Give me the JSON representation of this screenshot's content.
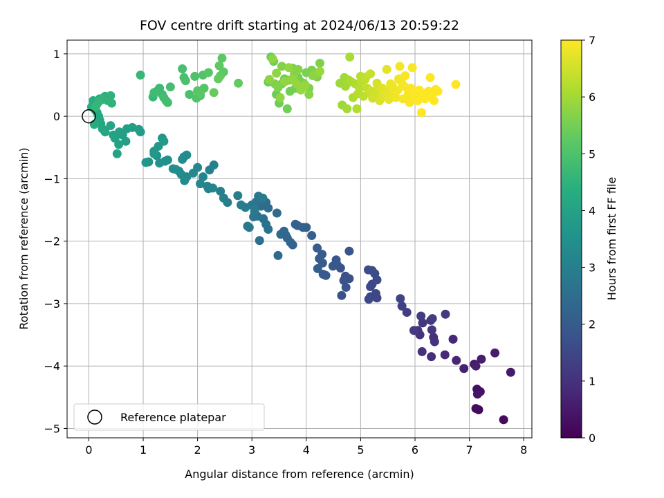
{
  "chart_data": {
    "type": "scatter",
    "title": "FOV centre drift starting at 2024/06/13 20:59:22",
    "xlabel": "Angular distance from reference (arcmin)",
    "ylabel": "Rotation from reference (arcmin)",
    "xlim": [
      -0.4,
      8.15
    ],
    "ylim": [
      -5.15,
      1.22
    ],
    "xticks": [
      0,
      1,
      2,
      3,
      4,
      5,
      6,
      7,
      8
    ],
    "yticks": [
      1,
      0,
      -1,
      -2,
      -3,
      -4,
      -5
    ],
    "grid": true,
    "colormap": "viridis",
    "colorbar": {
      "label": "Hours from first FF file",
      "min": 0,
      "max": 7,
      "ticks": [
        0,
        1,
        2,
        3,
        4,
        5,
        6,
        7
      ]
    },
    "legend": {
      "placement": "lower-left",
      "entries": [
        "Reference platepar"
      ]
    },
    "reference_point": {
      "x": 0.0,
      "y": 0.0,
      "label": "Reference platepar"
    },
    "series": [
      {
        "x": [
          7.17,
          7.63,
          7.12,
          7.14,
          7.2,
          7.15,
          7.09,
          7.76,
          7.47,
          7.22,
          7.12,
          6.9,
          6.76,
          6.7,
          6.55,
          6.3,
          6.34,
          6.13,
          6.09,
          6.05,
          6.36,
          6.29,
          6.31,
          6.14,
          6.56,
          6.32,
          5.98,
          6.11,
          5.85,
          5.76,
          5.73
        ],
        "y": [
          -4.7,
          -4.86,
          -4.68,
          -4.37,
          -4.41,
          -4.45,
          -3.97,
          -4.1,
          -3.79,
          -3.89,
          -4.0,
          -4.04,
          -3.91,
          -3.57,
          -3.82,
          -3.85,
          -3.54,
          -3.77,
          -3.5,
          -3.43,
          -3.61,
          -3.27,
          -3.42,
          -3.31,
          -3.17,
          -3.24,
          -3.43,
          -3.2,
          -3.14,
          -3.04,
          -2.92
        ],
        "hours": [
          0.1,
          0.2,
          0.25,
          0.3,
          0.35,
          0.4,
          0.45,
          0.5,
          0.55,
          0.6,
          0.65,
          0.7,
          0.75,
          0.8,
          0.85,
          0.9,
          0.95,
          1.0,
          1.0,
          1.05,
          1.05,
          1.1,
          1.15,
          1.15,
          1.2,
          1.25,
          1.2,
          1.25,
          1.3,
          1.35,
          1.4
        ]
      },
      {
        "x": [
          5.3,
          5.18,
          5.28,
          5.21,
          5.18,
          5.15,
          5.3,
          5.26,
          5.21,
          5.14,
          4.79,
          4.72,
          4.69,
          4.65,
          4.73,
          4.63,
          4.57,
          4.79,
          4.55,
          4.49,
          4.31,
          4.36,
          4.3,
          4.29,
          4.2,
          4.24,
          4.21,
          4.1,
          4.0,
          3.94,
          3.84,
          3.8,
          3.75,
          3.71,
          3.65,
          3.62,
          3.59,
          3.53,
          3.48,
          3.46,
          3.3,
          3.26,
          3.22,
          3.17,
          3.14,
          3.21,
          3.3,
          3.26,
          3.1,
          3.05,
          3.03,
          3.08,
          3.0,
          2.95,
          2.92,
          3.12,
          3.2,
          3.05,
          2.88,
          2.8,
          2.74,
          2.55,
          2.48,
          2.42,
          2.3,
          2.22,
          2.2,
          2.18,
          2.28,
          2.1,
          2.05,
          2.0,
          1.92,
          1.8,
          1.76,
          1.7,
          1.66,
          1.72,
          1.75,
          1.8,
          1.6,
          1.55,
          1.45,
          1.4,
          1.3,
          1.25,
          1.2,
          1.1,
          1.05,
          1.35,
          1.28,
          1.2,
          1.38
        ],
        "y": [
          -2.91,
          -2.89,
          -2.84,
          -2.69,
          -2.73,
          -2.93,
          -2.62,
          -2.52,
          -2.47,
          -2.46,
          -2.6,
          -2.56,
          -2.63,
          -2.87,
          -2.74,
          -2.43,
          -2.38,
          -2.16,
          -2.3,
          -2.4,
          -2.53,
          -2.55,
          -2.35,
          -2.21,
          -2.11,
          -2.28,
          -2.44,
          -1.91,
          -1.78,
          -1.78,
          -1.75,
          -1.73,
          -2.06,
          -2.02,
          -1.95,
          -1.9,
          -1.84,
          -1.89,
          -2.23,
          -1.55,
          -1.47,
          -1.38,
          -1.41,
          -1.44,
          -1.99,
          -1.64,
          -1.81,
          -1.73,
          -1.6,
          -1.53,
          -1.61,
          -1.37,
          -1.42,
          -1.78,
          -1.76,
          -1.28,
          -1.31,
          -1.49,
          -1.46,
          -1.42,
          -1.27,
          -1.38,
          -1.31,
          -1.2,
          -0.78,
          -0.86,
          -1.16,
          -1.12,
          -1.15,
          -0.97,
          -1.08,
          -0.82,
          -0.91,
          -0.97,
          -1.03,
          -0.93,
          -0.88,
          -0.69,
          -0.65,
          -0.62,
          -0.85,
          -0.84,
          -0.7,
          -0.72,
          -0.75,
          -0.63,
          -0.56,
          -0.73,
          -0.74,
          -0.35,
          -0.48,
          -0.6,
          -0.4
        ],
        "hours": [
          1.45,
          1.5,
          1.5,
          1.55,
          1.55,
          1.55,
          1.6,
          1.6,
          1.65,
          1.65,
          1.7,
          1.7,
          1.75,
          1.75,
          1.8,
          1.8,
          1.85,
          1.85,
          1.9,
          1.9,
          1.95,
          1.95,
          2.0,
          2.0,
          2.05,
          2.05,
          2.1,
          2.1,
          2.15,
          2.15,
          2.2,
          2.2,
          2.25,
          2.25,
          2.3,
          2.3,
          2.35,
          2.35,
          2.4,
          2.4,
          2.45,
          2.45,
          2.5,
          2.5,
          2.55,
          2.55,
          2.6,
          2.6,
          2.65,
          2.65,
          2.7,
          2.7,
          2.75,
          2.75,
          2.8,
          2.8,
          2.85,
          2.85,
          2.9,
          2.9,
          2.95,
          2.95,
          3.0,
          3.0,
          3.05,
          3.05,
          3.1,
          3.1,
          3.15,
          3.15,
          3.2,
          3.2,
          3.25,
          3.25,
          3.3,
          3.3,
          3.35,
          3.35,
          3.4,
          3.4,
          3.45,
          3.45,
          3.5,
          3.5,
          3.55,
          3.55,
          3.6,
          3.6,
          3.65,
          3.65,
          3.7,
          3.7,
          3.75
        ]
      },
      {
        "x": [
          0.95,
          0.92,
          0.8,
          0.68,
          0.62,
          0.7,
          0.56,
          0.48,
          0.55,
          0.45,
          0.52,
          0.4,
          0.3,
          0.25,
          0.22,
          0.2,
          0.18,
          0.15,
          0.12,
          0.1,
          0.14,
          0.08,
          0.05,
          0.2,
          0.3,
          0.28,
          0.35,
          0.4,
          0.42,
          0.33,
          0.25,
          0.18,
          0.12
        ],
        "y": [
          -0.25,
          -0.21,
          -0.18,
          -0.4,
          -0.3,
          -0.2,
          -0.25,
          -0.35,
          -0.45,
          -0.3,
          -0.6,
          -0.15,
          -0.25,
          -0.2,
          -0.12,
          -0.06,
          0.0,
          0.06,
          0.1,
          -0.13,
          0.18,
          0.25,
          0.15,
          0.28,
          0.32,
          0.3,
          0.25,
          0.33,
          0.21,
          0.3,
          0.27,
          0.23,
          0.15
        ],
        "hours": [
          3.8,
          3.82,
          3.85,
          3.88,
          3.9,
          3.92,
          3.95,
          3.97,
          4.0,
          4.02,
          4.05,
          4.07,
          4.1,
          4.12,
          4.15,
          4.17,
          4.2,
          4.22,
          4.25,
          4.27,
          4.3,
          4.32,
          4.35,
          4.37,
          4.4,
          4.42,
          4.45,
          4.47,
          4.5,
          4.52,
          4.55,
          4.57,
          4.6
        ]
      },
      {
        "x": [
          0.95,
          1.18,
          1.25,
          1.3,
          1.35,
          1.42,
          1.28,
          1.2,
          1.38,
          1.45,
          1.5,
          1.72,
          1.75,
          1.85,
          1.78,
          1.95,
          2.05,
          1.98,
          2.1,
          2.12,
          2.2,
          2.0,
          2.05,
          2.45,
          2.48,
          2.4,
          2.42,
          2.75,
          2.38,
          2.3
        ],
        "y": [
          0.66,
          0.31,
          0.4,
          0.45,
          0.35,
          0.25,
          0.42,
          0.38,
          0.3,
          0.22,
          0.47,
          0.76,
          0.62,
          0.35,
          0.57,
          0.64,
          0.33,
          0.29,
          0.66,
          0.45,
          0.7,
          0.41,
          0.36,
          0.93,
          0.71,
          0.81,
          0.65,
          0.53,
          0.6,
          0.38
        ],
        "hours": [
          4.62,
          4.65,
          4.67,
          4.7,
          4.72,
          4.75,
          4.77,
          4.8,
          4.82,
          4.85,
          4.87,
          4.9,
          4.92,
          4.95,
          4.97,
          5.0,
          5.02,
          5.05,
          5.07,
          5.1,
          5.12,
          5.15,
          5.17,
          5.2,
          5.22,
          5.25,
          5.27,
          5.3,
          5.32,
          5.35
        ]
      },
      {
        "x": [
          3.3,
          3.35,
          3.4,
          3.45,
          3.5,
          3.55,
          3.6,
          3.65,
          3.7,
          3.75,
          3.8,
          3.85,
          3.9,
          3.95,
          4.0,
          4.05,
          4.1,
          4.15,
          4.2,
          4.25,
          3.42,
          3.48,
          3.55,
          3.62,
          3.7,
          3.78,
          3.85,
          3.92,
          3.98,
          4.05,
          4.12,
          4.18,
          3.32,
          3.38,
          3.45,
          3.52,
          3.6,
          3.68,
          3.75,
          3.82,
          3.9,
          3.97,
          4.25
        ],
        "y": [
          0.55,
          0.95,
          0.88,
          0.35,
          0.21,
          0.52,
          0.6,
          0.12,
          0.4,
          0.77,
          0.45,
          0.62,
          0.55,
          0.53,
          0.7,
          0.45,
          0.74,
          0.66,
          0.63,
          0.85,
          0.52,
          0.46,
          0.8,
          0.56,
          0.58,
          0.67,
          0.75,
          0.48,
          0.5,
          0.35,
          0.65,
          0.67,
          0.59,
          0.92,
          0.69,
          0.3,
          0.56,
          0.78,
          0.6,
          0.52,
          0.42,
          0.48,
          0.72
        ],
        "hours": [
          5.37,
          5.38,
          5.4,
          5.41,
          5.42,
          5.43,
          5.45,
          5.46,
          5.47,
          5.48,
          5.5,
          5.51,
          5.52,
          5.53,
          5.55,
          5.56,
          5.57,
          5.58,
          5.6,
          5.61,
          5.62,
          5.63,
          5.65,
          5.66,
          5.67,
          5.68,
          5.7,
          5.71,
          5.72,
          5.73,
          5.75,
          5.76,
          5.77,
          5.78,
          5.8,
          5.81,
          5.82,
          5.83,
          5.85,
          5.86,
          5.87,
          5.88,
          5.9
        ]
      },
      {
        "x": [
          4.62,
          4.66,
          4.7,
          4.72,
          4.75,
          4.78,
          4.8,
          4.83,
          4.86,
          4.9,
          4.93,
          4.95,
          4.98,
          5.0,
          5.02,
          5.05,
          5.08,
          5.1,
          5.12,
          5.15,
          5.18,
          5.2,
          5.22,
          5.25,
          5.28,
          5.3,
          5.32,
          5.35,
          5.38,
          5.4,
          5.42,
          5.45,
          5.48,
          5.5,
          5.52,
          5.55,
          5.58,
          5.6,
          5.62,
          5.65,
          5.68,
          5.7,
          5.72,
          5.75,
          5.78,
          5.8,
          5.82,
          5.85,
          5.88,
          5.9,
          5.92,
          5.95,
          5.98,
          6.0,
          6.02,
          6.05,
          6.08,
          6.1,
          6.12,
          6.15,
          6.18,
          6.2,
          6.22,
          6.25,
          6.28,
          6.3,
          6.32,
          6.35,
          6.38,
          6.42,
          6.75
        ],
        "y": [
          0.53,
          0.18,
          0.62,
          0.48,
          0.12,
          0.58,
          0.95,
          0.55,
          0.3,
          0.52,
          0.12,
          0.36,
          0.45,
          0.64,
          0.56,
          0.32,
          0.59,
          0.63,
          0.45,
          0.38,
          0.68,
          0.4,
          0.29,
          0.33,
          0.36,
          0.53,
          0.48,
          0.25,
          0.3,
          0.45,
          0.33,
          0.41,
          0.75,
          0.36,
          0.27,
          0.52,
          0.5,
          0.4,
          0.38,
          0.3,
          0.42,
          0.6,
          0.8,
          0.55,
          0.28,
          0.48,
          0.65,
          0.3,
          0.38,
          0.22,
          0.45,
          0.78,
          0.4,
          0.35,
          0.3,
          0.25,
          0.42,
          0.35,
          0.06,
          0.3,
          0.28,
          0.32,
          0.38,
          0.4,
          0.62,
          0.3,
          0.35,
          0.25,
          0.43,
          0.4,
          0.51
        ],
        "hours": [
          5.92,
          5.95,
          5.97,
          6.0,
          6.02,
          6.05,
          6.07,
          6.1,
          6.12,
          6.15,
          6.17,
          6.2,
          6.22,
          6.25,
          6.27,
          6.3,
          6.32,
          6.35,
          6.37,
          6.4,
          6.42,
          6.45,
          6.47,
          6.5,
          6.52,
          6.55,
          6.57,
          6.6,
          6.62,
          6.65,
          6.67,
          6.7,
          6.72,
          6.75,
          6.77,
          6.8,
          6.82,
          6.84,
          6.85,
          6.86,
          6.87,
          6.88,
          6.89,
          6.9,
          6.91,
          6.92,
          6.93,
          6.94,
          6.95,
          6.95,
          6.96,
          6.96,
          6.97,
          6.97,
          6.97,
          6.98,
          6.98,
          6.98,
          6.99,
          6.99,
          6.99,
          6.99,
          7.0,
          7.0,
          7.0,
          7.0,
          7.0,
          7.0,
          7.0,
          7.0,
          7.0
        ]
      }
    ]
  }
}
